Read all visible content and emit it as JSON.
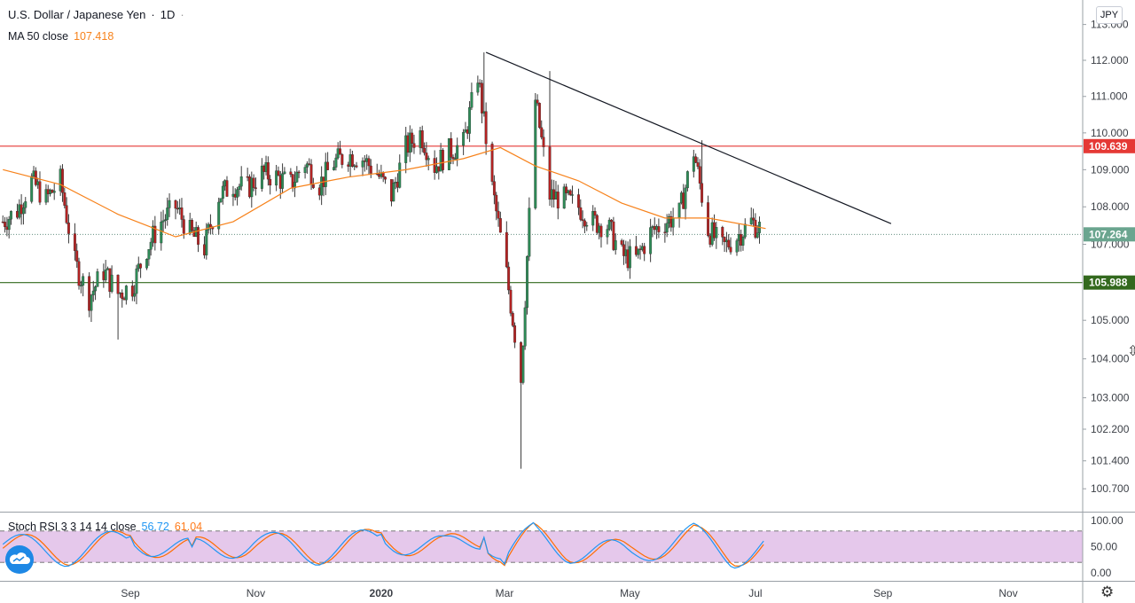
{
  "legend": {
    "symbol": "U.S. Dollar / Japanese Yen",
    "interval": "1D",
    "ma_label": "MA 50 close",
    "ma_value": "107.418",
    "stoch_label": "Stoch RSI 3 3 14 14 close",
    "stoch_k": "56.72",
    "stoch_d": "61.04"
  },
  "currency_badge": "JPY",
  "icons": {
    "logo": "tradingview-cloud-icon",
    "settings": "gear-icon",
    "cursor": "resize-cursor-icon"
  },
  "colors": {
    "up": "#26a69a",
    "up_body": "#2e8b57",
    "down": "#b22222",
    "ma": "#f7821b",
    "resistance": "#e53935",
    "support": "#33691e",
    "last_price": "#6aa58f",
    "stoch_k": "#2196f3",
    "stoch_d": "#ff6d00",
    "stoch_band": "#e1bee7"
  },
  "chart_data": [
    {
      "type": "candlestick",
      "title": "U.S. Dollar / Japanese Yen · 1D",
      "x_ticks": [
        "Sep",
        "Nov",
        "2020",
        "Mar",
        "May",
        "Jul",
        "Sep",
        "Nov"
      ],
      "y_ticks": [
        "113.000",
        "112.000",
        "111.000",
        "110.000",
        "109.000",
        "108.000",
        "107.000",
        "105.000",
        "104.000",
        "103.000",
        "102.200",
        "101.400",
        "100.700"
      ],
      "log_scale": true,
      "price_labels": {
        "resistance": "109.639",
        "last": "107.264",
        "support": "105.988"
      },
      "horizontal_lines": [
        {
          "name": "resistance",
          "value": 109.639
        },
        {
          "name": "support",
          "value": 105.988
        },
        {
          "name": "last-price",
          "value": 107.264
        }
      ],
      "trendline": {
        "from": [
          "2020-02-21",
          112.22
        ],
        "to": [
          "2020-09-05",
          107.55
        ]
      },
      "series": [
        {
          "name": "USD/JPY",
          "points": [
            [
              "2019-07-01",
              107.6
            ],
            [
              "2019-07-08",
              107.9
            ],
            [
              "2019-07-15",
              108.7
            ],
            [
              "2019-07-22",
              108.2
            ],
            [
              "2019-07-29",
              108.7
            ],
            [
              "2019-08-05",
              106.5
            ],
            [
              "2019-08-12",
              105.6
            ],
            [
              "2019-08-19",
              106.3
            ],
            [
              "2019-08-26",
              105.7
            ],
            [
              "2019-09-02",
              105.9
            ],
            [
              "2019-09-09",
              106.9
            ],
            [
              "2019-09-16",
              107.6
            ],
            [
              "2019-09-23",
              108.0
            ],
            [
              "2019-09-30",
              107.3
            ],
            [
              "2019-10-07",
              106.9
            ],
            [
              "2019-10-14",
              108.3
            ],
            [
              "2019-10-21",
              108.6
            ],
            [
              "2019-10-28",
              108.5
            ],
            [
              "2019-11-04",
              108.9
            ],
            [
              "2019-11-11",
              108.8
            ],
            [
              "2019-11-18",
              108.6
            ],
            [
              "2019-11-25",
              109.2
            ],
            [
              "2019-12-02",
              108.6
            ],
            [
              "2019-12-09",
              109.2
            ],
            [
              "2019-12-16",
              109.4
            ],
            [
              "2019-12-23",
              109.3
            ],
            [
              "2019-12-30",
              108.9
            ],
            [
              "2020-01-06",
              108.3
            ],
            [
              "2020-01-13",
              109.6
            ],
            [
              "2020-01-20",
              110.0
            ],
            [
              "2020-01-27",
              109.1
            ],
            [
              "2020-02-03",
              109.5
            ],
            [
              "2020-02-10",
              109.7
            ],
            [
              "2020-02-17",
              111.6
            ],
            [
              "2020-02-24",
              108.5
            ],
            [
              "2020-03-02",
              106.2
            ],
            [
              "2020-03-09",
              103.5
            ],
            [
              "2020-03-16",
              110.9
            ],
            [
              "2020-03-23",
              108.3
            ],
            [
              "2020-03-30",
              108.2
            ],
            [
              "2020-04-06",
              108.0
            ],
            [
              "2020-04-13",
              107.6
            ],
            [
              "2020-04-20",
              107.5
            ],
            [
              "2020-04-27",
              106.7
            ],
            [
              "2020-05-04",
              106.6
            ],
            [
              "2020-05-11",
              107.3
            ],
            [
              "2020-05-18",
              107.6
            ],
            [
              "2020-05-25",
              107.8
            ],
            [
              "2020-06-01",
              109.5
            ],
            [
              "2020-06-08",
              107.4
            ],
            [
              "2020-06-15",
              106.9
            ],
            [
              "2020-06-22",
              107.2
            ],
            [
              "2020-06-29",
              107.6
            ],
            [
              "2020-07-06",
              107.3
            ]
          ]
        },
        {
          "name": "MA 50 close",
          "points": [
            [
              "2019-07-01",
              109.0
            ],
            [
              "2019-07-29",
              108.6
            ],
            [
              "2019-08-26",
              107.8
            ],
            [
              "2019-09-23",
              107.2
            ],
            [
              "2019-10-21",
              107.6
            ],
            [
              "2019-11-18",
              108.5
            ],
            [
              "2019-12-16",
              108.8
            ],
            [
              "2020-01-13",
              109.0
            ],
            [
              "2020-02-10",
              109.3
            ],
            [
              "2020-02-28",
              109.6
            ],
            [
              "2020-03-16",
              109.1
            ],
            [
              "2020-04-06",
              108.7
            ],
            [
              "2020-04-27",
              108.1
            ],
            [
              "2020-05-18",
              107.7
            ],
            [
              "2020-06-08",
              107.7
            ],
            [
              "2020-07-06",
              107.42
            ]
          ]
        }
      ]
    },
    {
      "type": "line",
      "title": "Stoch RSI 3 3 14 14 close",
      "y_ticks": [
        "100.00",
        "50.00",
        "0.00"
      ],
      "ylim": [
        0,
        100
      ],
      "band": [
        20,
        80
      ],
      "series": [
        {
          "name": "K",
          "values": [
            [
              "2019-07-01",
              60
            ],
            [
              "2019-08-01",
              20
            ],
            [
              "2019-09-01",
              80
            ],
            [
              "2019-10-01",
              30
            ],
            [
              "2019-11-01",
              70
            ],
            [
              "2019-12-01",
              25
            ],
            [
              "2020-01-01",
              85
            ],
            [
              "2020-02-01",
              40
            ],
            [
              "2020-02-20",
              95
            ],
            [
              "2020-03-01",
              5
            ],
            [
              "2020-03-15",
              98
            ],
            [
              "2020-04-01",
              35
            ],
            [
              "2020-05-01",
              20
            ],
            [
              "2020-06-01",
              95
            ],
            [
              "2020-06-20",
              10
            ],
            [
              "2020-07-06",
              56.72
            ]
          ]
        },
        {
          "name": "D",
          "values": [
            [
              "2019-07-01",
              62
            ],
            [
              "2019-08-01",
              24
            ],
            [
              "2019-09-01",
              76
            ],
            [
              "2019-10-01",
              34
            ],
            [
              "2019-11-01",
              68
            ],
            [
              "2019-12-01",
              28
            ],
            [
              "2020-01-01",
              82
            ],
            [
              "2020-02-01",
              44
            ],
            [
              "2020-02-20",
              92
            ],
            [
              "2020-03-01",
              8
            ],
            [
              "2020-03-15",
              96
            ],
            [
              "2020-04-01",
              38
            ],
            [
              "2020-05-01",
              23
            ],
            [
              "2020-06-01",
              92
            ],
            [
              "2020-06-20",
              12
            ],
            [
              "2020-07-06",
              61.04
            ]
          ]
        }
      ]
    }
  ]
}
